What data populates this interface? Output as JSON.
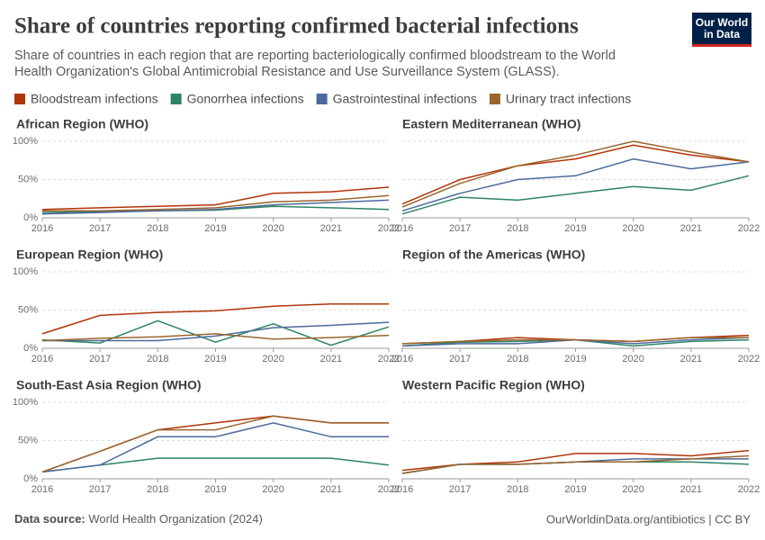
{
  "title": "Share of countries reporting confirmed bacterial infections",
  "subtitle": [
    "Share of countries in each region that are reporting bacteriologically confirmed bloodstream to the World",
    "Health Organization's Global Antimicrobial Resistance and Use Surveillance System (GLASS)."
  ],
  "logo": [
    "Our World",
    "in Data"
  ],
  "source_label": "Data source:",
  "source": "World Health Organization (2024)",
  "credit": "OurWorldinData.org/antibiotics | CC BY",
  "chart_data": [
    {
      "type": "line",
      "title": "African Region (WHO)",
      "x": [
        2016,
        2017,
        2018,
        2019,
        2020,
        2021,
        2022
      ],
      "xlim": [
        2016,
        2022
      ],
      "xticks": [
        2016,
        2017,
        2018,
        2019,
        2020,
        2021,
        2022
      ],
      "ylim": [
        0,
        100
      ],
      "yticks": [
        {
          "value": 0,
          "label": "0%"
        },
        {
          "value": 50,
          "label": "50%"
        },
        {
          "value": 100,
          "label": "100%"
        }
      ],
      "grid": true,
      "series": [
        {
          "name": "Bloodstream infections",
          "color": "#b13507",
          "values": [
            11,
            13,
            15,
            17,
            32,
            34,
            40
          ]
        },
        {
          "name": "Gonorrhea infections",
          "color": "#2c8465",
          "values": [
            7,
            8,
            9,
            10,
            15,
            13,
            11
          ]
        },
        {
          "name": "Gastrointestinal infections",
          "color": "#4c6a9c",
          "values": [
            5,
            7,
            9,
            11,
            17,
            20,
            23
          ]
        },
        {
          "name": "Urinary tract infections",
          "color": "#9a652e",
          "values": [
            9,
            9,
            11,
            13,
            21,
            23,
            29
          ]
        }
      ]
    },
    {
      "type": "line",
      "title": "Eastern Mediterranean (WHO)",
      "x": [
        2016,
        2017,
        2018,
        2019,
        2020,
        2021,
        2022
      ],
      "xlim": [
        2016,
        2022
      ],
      "xticks": [
        2016,
        2017,
        2018,
        2019,
        2020,
        2021,
        2022
      ],
      "ylim": [
        0,
        100
      ],
      "yticks": [
        0,
        50,
        100
      ],
      "grid": true,
      "series": [
        {
          "name": "Bloodstream infections",
          "color": "#b13507",
          "values": [
            18,
            50,
            68,
            77,
            95,
            82,
            73
          ]
        },
        {
          "name": "Gonorrhea infections",
          "color": "#2c8465",
          "values": [
            5,
            27,
            23,
            32,
            41,
            36,
            55
          ]
        },
        {
          "name": "Gastrointestinal infections",
          "color": "#4c6a9c",
          "values": [
            9,
            32,
            50,
            55,
            77,
            64,
            73
          ]
        },
        {
          "name": "Urinary tract infections",
          "color": "#9a652e",
          "values": [
            14,
            45,
            68,
            82,
            100,
            86,
            73
          ]
        }
      ]
    },
    {
      "type": "line",
      "title": "European Region (WHO)",
      "x": [
        2016,
        2017,
        2018,
        2019,
        2020,
        2021,
        2022
      ],
      "xlim": [
        2016,
        2022
      ],
      "xticks": [
        2016,
        2017,
        2018,
        2019,
        2020,
        2021,
        2022
      ],
      "ylim": [
        0,
        100
      ],
      "yticks": [
        {
          "value": 0,
          "label": "0%"
        },
        {
          "value": 50,
          "label": "50%"
        },
        {
          "value": 100,
          "label": "100%"
        }
      ],
      "grid": true,
      "series": [
        {
          "name": "Bloodstream infections",
          "color": "#b13507",
          "values": [
            19,
            43,
            47,
            49,
            55,
            58,
            58
          ]
        },
        {
          "name": "Gonorrhea infections",
          "color": "#2c8465",
          "values": [
            11,
            7,
            36,
            8,
            32,
            4,
            28
          ]
        },
        {
          "name": "Gastrointestinal infections",
          "color": "#4c6a9c",
          "values": [
            10,
            10,
            10,
            16,
            27,
            30,
            34
          ]
        },
        {
          "name": "Urinary tract infections",
          "color": "#9a652e",
          "values": [
            10,
            13,
            15,
            19,
            12,
            14,
            17
          ]
        }
      ]
    },
    {
      "type": "line",
      "title": "Region of the Americas (WHO)",
      "x": [
        2016,
        2017,
        2018,
        2019,
        2020,
        2021,
        2022
      ],
      "xlim": [
        2016,
        2022
      ],
      "xticks": [
        2016,
        2017,
        2018,
        2019,
        2020,
        2021,
        2022
      ],
      "ylim": [
        0,
        100
      ],
      "yticks": [
        0,
        50,
        100
      ],
      "grid": true,
      "series": [
        {
          "name": "Bloodstream infections",
          "color": "#b13507",
          "values": [
            6,
            9,
            14,
            11,
            9,
            14,
            17
          ]
        },
        {
          "name": "Gonorrhea infections",
          "color": "#2c8465",
          "values": [
            3,
            8,
            9,
            11,
            3,
            9,
            11
          ]
        },
        {
          "name": "Gastrointestinal infections",
          "color": "#4c6a9c",
          "values": [
            3,
            6,
            6,
            11,
            6,
            11,
            14
          ]
        },
        {
          "name": "Urinary tract infections",
          "color": "#9a652e",
          "values": [
            6,
            9,
            11,
            11,
            9,
            14,
            14
          ]
        }
      ]
    },
    {
      "type": "line",
      "title": "South-East Asia Region (WHO)",
      "x": [
        2016,
        2017,
        2018,
        2019,
        2020,
        2021,
        2022
      ],
      "xlim": [
        2016,
        2022
      ],
      "xticks": [
        2016,
        2017,
        2018,
        2019,
        2020,
        2021,
        2022
      ],
      "ylim": [
        0,
        100
      ],
      "yticks": [
        {
          "value": 0,
          "label": "0%"
        },
        {
          "value": 50,
          "label": "50%"
        },
        {
          "value": 100,
          "label": "100%"
        }
      ],
      "grid": true,
      "series": [
        {
          "name": "Bloodstream infections",
          "color": "#b13507",
          "values": [
            9,
            36,
            64,
            73,
            82,
            73,
            73
          ]
        },
        {
          "name": "Gonorrhea infections",
          "color": "#2c8465",
          "values": [
            9,
            18,
            27,
            27,
            27,
            27,
            18
          ]
        },
        {
          "name": "Gastrointestinal infections",
          "color": "#4c6a9c",
          "values": [
            9,
            18,
            55,
            55,
            73,
            55,
            55
          ]
        },
        {
          "name": "Urinary tract infections",
          "color": "#9a652e",
          "values": [
            9,
            36,
            64,
            64,
            82,
            73,
            73
          ]
        }
      ]
    },
    {
      "type": "line",
      "title": "Western Pacific Region (WHO)",
      "x": [
        2016,
        2017,
        2018,
        2019,
        2020,
        2021,
        2022
      ],
      "xlim": [
        2016,
        2022
      ],
      "xticks": [
        2016,
        2017,
        2018,
        2019,
        2020,
        2021,
        2022
      ],
      "ylim": [
        0,
        100
      ],
      "yticks": [
        0,
        50,
        100
      ],
      "grid": true,
      "series": [
        {
          "name": "Bloodstream infections",
          "color": "#b13507",
          "values": [
            11,
            19,
            22,
            33,
            33,
            30,
            37
          ]
        },
        {
          "name": "Gonorrhea infections",
          "color": "#2c8465",
          "values": [
            7,
            19,
            19,
            22,
            22,
            22,
            19
          ]
        },
        {
          "name": "Gastrointestinal infections",
          "color": "#4c6a9c",
          "values": [
            7,
            19,
            19,
            22,
            26,
            26,
            26
          ]
        },
        {
          "name": "Urinary tract infections",
          "color": "#9a652e",
          "values": [
            7,
            19,
            19,
            22,
            22,
            26,
            30
          ]
        }
      ]
    }
  ]
}
